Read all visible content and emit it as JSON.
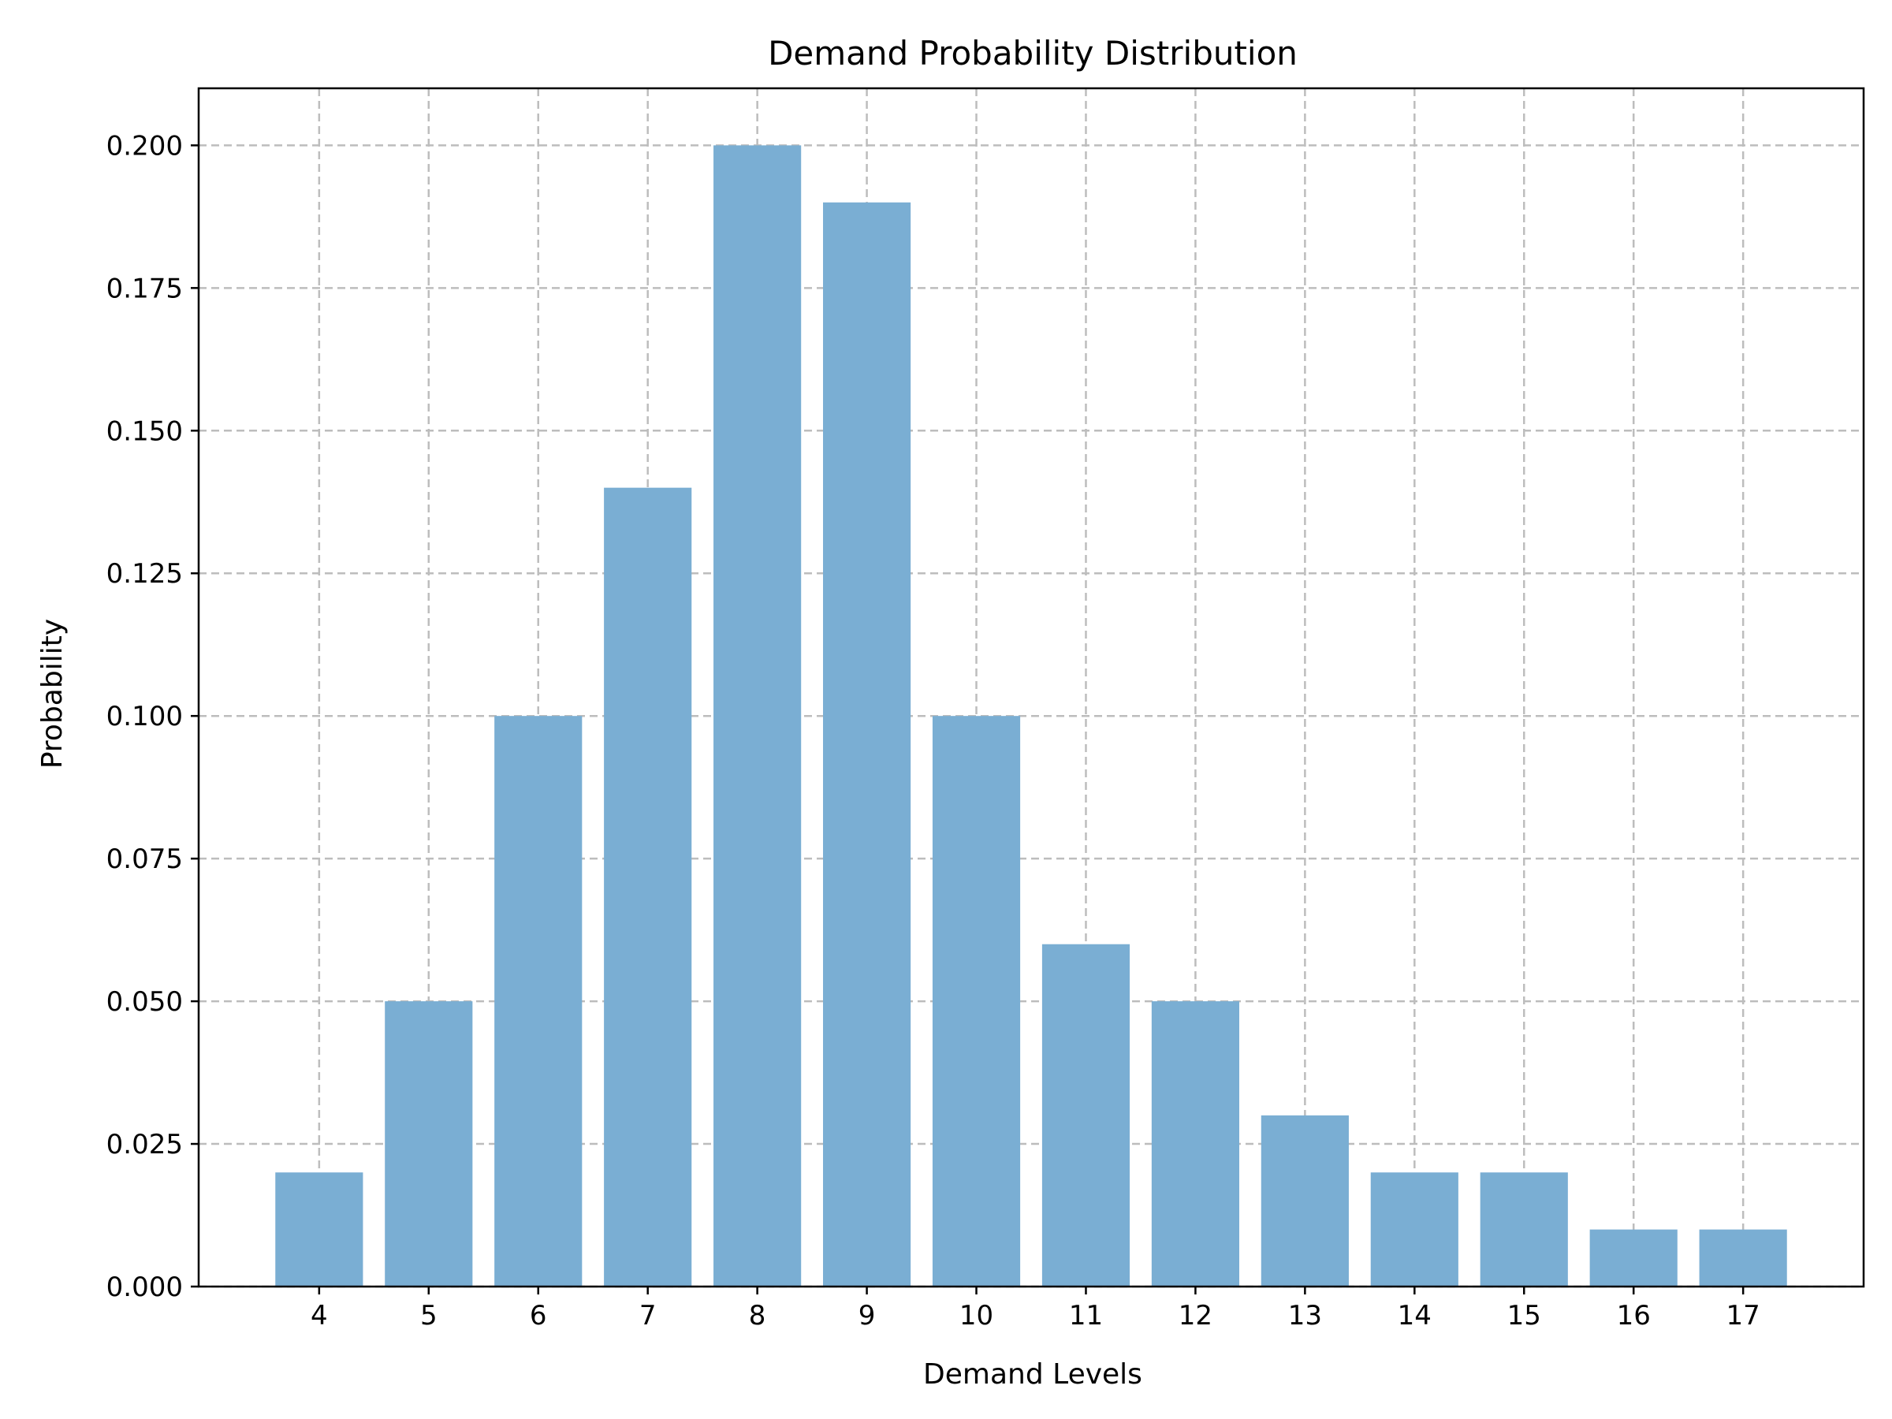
{
  "chart_data": {
    "type": "bar",
    "title": "Demand Probability Distribution",
    "xlabel": "Demand Levels",
    "ylabel": "Probability",
    "categories": [
      "4",
      "5",
      "6",
      "7",
      "8",
      "9",
      "10",
      "11",
      "12",
      "13",
      "14",
      "15",
      "16",
      "17"
    ],
    "values": [
      0.02,
      0.05,
      0.1,
      0.14,
      0.2,
      0.19,
      0.1,
      0.06,
      0.05,
      0.03,
      0.02,
      0.02,
      0.01,
      0.01
    ],
    "ylim": [
      0,
      0.21
    ],
    "xlim": [
      2.9,
      18.1
    ],
    "yticks": [
      "0.000",
      "0.025",
      "0.050",
      "0.075",
      "0.100",
      "0.125",
      "0.150",
      "0.175",
      "0.200"
    ],
    "bar_color": "#7aaed3",
    "grid": true,
    "grid_color": "#bdbdbd"
  }
}
